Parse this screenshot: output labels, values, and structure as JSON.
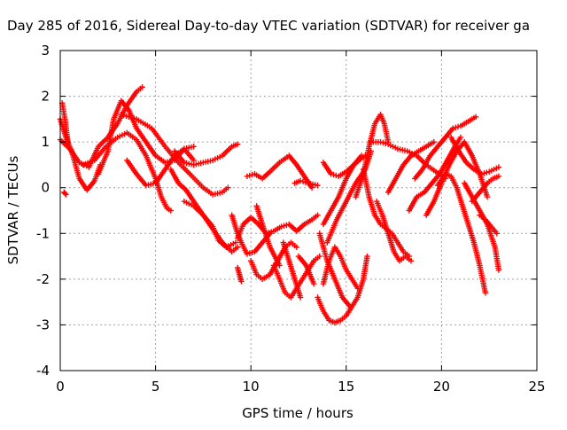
{
  "chart_data": {
    "type": "scatter",
    "title": "Day 285 of 2016, Sidereal Day-to-day VTEC variation (SDTVAR) for receiver ga",
    "xlabel": "GPS time / hours",
    "ylabel": "SDTVAR / TECUs",
    "xlim": [
      0,
      25
    ],
    "ylim": [
      -4,
      3
    ],
    "xticks": [
      0,
      5,
      10,
      15,
      20,
      25
    ],
    "yticks": [
      -4,
      -3,
      -2,
      -1,
      0,
      1,
      2,
      3
    ],
    "grid": true,
    "marker": "+",
    "color": "#ff0000",
    "tracks": [
      {
        "x": [
          0.0,
          0.3,
          0.6,
          1.0,
          1.4,
          1.8,
          2.1
        ],
        "y": [
          1.5,
          1.1,
          0.8,
          0.2,
          -0.05,
          0.15,
          0.5
        ]
      },
      {
        "x": [
          0.0,
          0.5,
          1.0,
          1.5,
          2.0,
          2.5,
          3.0,
          3.5,
          4.0,
          4.3
        ],
        "y": [
          1.05,
          0.85,
          0.55,
          0.45,
          0.9,
          1.1,
          1.4,
          1.8,
          2.1,
          2.2
        ]
      },
      {
        "x": [
          0.1,
          0.25,
          0.4
        ],
        "y": [
          1.85,
          1.5,
          1.0
        ]
      },
      {
        "x": [
          0.2,
          0.3
        ],
        "y": [
          -0.1,
          -0.15
        ]
      },
      {
        "x": [
          1.2,
          1.8,
          2.4,
          3.0,
          3.5,
          4.0,
          4.5,
          5.0,
          5.3,
          5.6,
          5.8
        ],
        "y": [
          0.5,
          0.6,
          0.9,
          1.1,
          1.2,
          1.05,
          0.7,
          0.2,
          -0.2,
          -0.45,
          -0.5
        ]
      },
      {
        "x": [
          2.0,
          2.5,
          2.8,
          3.2,
          3.6,
          4.0,
          4.5,
          5.0,
          5.5,
          6.0,
          6.5,
          7.0
        ],
        "y": [
          0.3,
          0.8,
          1.5,
          1.9,
          1.7,
          1.3,
          1.0,
          0.7,
          0.55,
          0.6,
          0.85,
          0.9
        ]
      },
      {
        "x": [
          3.5,
          4.0,
          4.5,
          5.0,
          5.5,
          6.0,
          6.5,
          7.0
        ],
        "y": [
          0.6,
          0.3,
          0.05,
          0.1,
          0.4,
          0.7,
          0.85,
          0.6
        ]
      },
      {
        "x": [
          3.2,
          4.0,
          4.8,
          5.5,
          6.2,
          6.8,
          7.5,
          8.0,
          8.5,
          8.8
        ],
        "y": [
          1.6,
          1.5,
          1.3,
          0.9,
          0.55,
          0.3,
          0.0,
          -0.15,
          -0.1,
          0.0
        ]
      },
      {
        "x": [
          5.8,
          6.2,
          6.6,
          7.0,
          7.5,
          8.0,
          8.5,
          9.0,
          9.3
        ],
        "y": [
          0.4,
          0.1,
          -0.05,
          -0.3,
          -0.6,
          -0.9,
          -1.2,
          -1.4,
          -1.3
        ]
      },
      {
        "x": [
          6.0,
          6.5,
          7.0,
          7.5,
          8.0,
          8.5,
          9.0,
          9.3
        ],
        "y": [
          0.8,
          0.55,
          0.5,
          0.55,
          0.6,
          0.7,
          0.9,
          0.95
        ]
      },
      {
        "x": [
          6.5,
          7.0,
          7.5,
          8.0,
          8.3,
          8.7,
          9.2
        ],
        "y": [
          -0.3,
          -0.4,
          -0.6,
          -0.85,
          -1.15,
          -1.3,
          -1.2
        ]
      },
      {
        "x": [
          9.0,
          9.3,
          9.5,
          9.8,
          10.2,
          10.6,
          11.0
        ],
        "y": [
          -0.6,
          -1.0,
          -1.2,
          -1.45,
          -1.4,
          -1.2,
          -1.0
        ]
      },
      {
        "x": [
          9.3,
          9.4,
          9.5
        ],
        "y": [
          -1.75,
          -1.9,
          -2.05
        ]
      },
      {
        "x": [
          9.3,
          9.6,
          10.0,
          10.4,
          10.8,
          11.2,
          11.6,
          12.0,
          12.4,
          12.8,
          13.2,
          13.5
        ],
        "y": [
          -1.1,
          -0.8,
          -0.65,
          -0.8,
          -1.0,
          -0.95,
          -0.85,
          -0.8,
          -0.95,
          -0.8,
          -0.7,
          -0.6
        ]
      },
      {
        "x": [
          9.8,
          10.2,
          10.6,
          11.0,
          11.5,
          12.0,
          12.4,
          12.8,
          13.2
        ],
        "y": [
          0.25,
          0.3,
          0.2,
          0.35,
          0.55,
          0.7,
          0.5,
          0.25,
          0.0
        ]
      },
      {
        "x": [
          10.0,
          10.3,
          10.6,
          11.0,
          11.4,
          11.8,
          12.1,
          12.4
        ],
        "y": [
          -1.6,
          -1.9,
          -2.0,
          -1.9,
          -1.6,
          -1.3,
          -1.2,
          -1.3
        ]
      },
      {
        "x": [
          10.3,
          10.6,
          11.0,
          11.5
        ],
        "y": [
          -0.4,
          -0.8,
          -1.3,
          -1.7
        ]
      },
      {
        "x": [
          11.2,
          11.5,
          11.8,
          12.1,
          12.4,
          12.7,
          13.0,
          13.3,
          13.6
        ],
        "y": [
          -1.7,
          -2.0,
          -2.3,
          -2.4,
          -2.2,
          -2.0,
          -1.8,
          -1.6,
          -1.5
        ]
      },
      {
        "x": [
          11.7,
          12.0,
          12.3,
          12.6
        ],
        "y": [
          -1.2,
          -1.6,
          -2.0,
          -2.4
        ]
      },
      {
        "x": [
          12.5,
          12.9,
          13.3
        ],
        "y": [
          -1.5,
          -1.7,
          -2.1
        ]
      },
      {
        "x": [
          12.3,
          12.6,
          13.0,
          13.5
        ],
        "y": [
          0.1,
          0.15,
          0.1,
          0.05
        ]
      },
      {
        "x": [
          13.5,
          13.8,
          14.1,
          14.4,
          14.7,
          15.0,
          15.3,
          15.6,
          15.9,
          16.1
        ],
        "y": [
          -2.4,
          -2.7,
          -2.9,
          -2.95,
          -2.9,
          -2.8,
          -2.6,
          -2.4,
          -2.0,
          -1.5
        ]
      },
      {
        "x": [
          13.6,
          14.0,
          14.4,
          14.8,
          15.2
        ],
        "y": [
          -1.0,
          -1.6,
          -2.0,
          -2.4,
          -2.6
        ]
      },
      {
        "x": [
          13.8,
          14.1,
          14.4,
          14.7,
          15.0,
          15.3,
          15.6
        ],
        "y": [
          -2.1,
          -1.6,
          -1.3,
          -1.5,
          -1.8,
          -2.0,
          -2.2
        ]
      },
      {
        "x": [
          14.0,
          14.5,
          15.0,
          15.5,
          16.0,
          16.3
        ],
        "y": [
          -1.2,
          -0.7,
          -0.3,
          0.1,
          0.4,
          0.8
        ]
      },
      {
        "x": [
          13.8,
          14.2,
          14.6,
          15.0,
          15.4,
          15.8
        ],
        "y": [
          -0.8,
          -0.5,
          -0.2,
          0.2,
          0.5,
          0.7
        ]
      },
      {
        "x": [
          13.8,
          14.2,
          14.6,
          15.0,
          15.4,
          15.8,
          16.0
        ],
        "y": [
          0.55,
          0.3,
          0.25,
          0.35,
          0.5,
          0.65,
          0.7
        ]
      },
      {
        "x": [
          15.5,
          15.9,
          16.2,
          16.5,
          16.8,
          17.0,
          17.2
        ],
        "y": [
          -0.2,
          0.3,
          0.9,
          1.4,
          1.6,
          1.4,
          1.0
        ]
      },
      {
        "x": [
          15.9,
          16.2,
          16.5,
          16.8,
          17.1,
          17.4,
          17.7,
          18.0,
          18.3
        ],
        "y": [
          0.4,
          -0.2,
          -0.6,
          -0.8,
          -0.9,
          -1.0,
          -1.2,
          -1.4,
          -1.5
        ]
      },
      {
        "x": [
          16.6,
          16.9,
          17.2,
          17.5,
          17.8,
          18.1,
          18.4
        ],
        "y": [
          -0.3,
          -0.6,
          -1.0,
          -1.4,
          -1.6,
          -1.5,
          -1.6
        ]
      },
      {
        "x": [
          16.3,
          16.8,
          17.2,
          17.7,
          18.2,
          18.7,
          19.2,
          19.7,
          20.2
        ],
        "y": [
          1.0,
          1.0,
          0.95,
          0.85,
          0.8,
          0.7,
          0.5,
          0.35,
          0.2
        ]
      },
      {
        "x": [
          17.2,
          17.6,
          18.0,
          18.4,
          18.8,
          19.2,
          19.6
        ],
        "y": [
          -0.1,
          0.2,
          0.5,
          0.7,
          0.8,
          0.9,
          1.0
        ]
      },
      {
        "x": [
          18.3,
          18.7,
          19.1,
          19.5,
          19.9,
          20.3,
          20.7,
          21.0
        ],
        "y": [
          -0.5,
          -0.2,
          -0.1,
          0.1,
          0.3,
          0.6,
          0.9,
          1.1
        ]
      },
      {
        "x": [
          18.6,
          19.0,
          19.4,
          19.8,
          20.2,
          20.6,
          21.0,
          21.4,
          21.8
        ],
        "y": [
          0.2,
          0.4,
          0.7,
          0.9,
          1.1,
          1.3,
          1.35,
          1.45,
          1.55
        ]
      },
      {
        "x": [
          19.2,
          19.6,
          20.0,
          20.4,
          20.8,
          21.2,
          21.6,
          22.0,
          22.4
        ],
        "y": [
          -0.6,
          -0.3,
          0.1,
          0.5,
          0.8,
          1.0,
          0.7,
          0.3,
          -0.2
        ]
      },
      {
        "x": [
          19.8,
          20.2,
          20.5,
          20.8,
          21.1,
          21.4,
          21.7,
          22.0,
          22.3
        ],
        "y": [
          0.05,
          0.3,
          0.25,
          0.0,
          -0.4,
          -0.8,
          -1.2,
          -1.7,
          -2.3
        ]
      },
      {
        "x": [
          20.5,
          20.9,
          21.3,
          21.7,
          22.1,
          22.5,
          23.0
        ],
        "y": [
          1.1,
          0.8,
          0.55,
          0.4,
          0.3,
          0.35,
          0.45
        ]
      },
      {
        "x": [
          21.2,
          21.6,
          22.0,
          22.4,
          22.8,
          23.0
        ],
        "y": [
          0.1,
          -0.2,
          -0.5,
          -0.8,
          -1.3,
          -1.8
        ]
      },
      {
        "x": [
          21.6,
          22.0,
          22.4,
          22.7,
          23.0
        ],
        "y": [
          -0.3,
          -0.1,
          0.1,
          0.2,
          0.25
        ]
      },
      {
        "x": [
          22.0,
          22.3,
          22.6,
          22.9
        ],
        "y": [
          -0.6,
          -0.7,
          -0.85,
          -1.0
        ]
      }
    ]
  }
}
